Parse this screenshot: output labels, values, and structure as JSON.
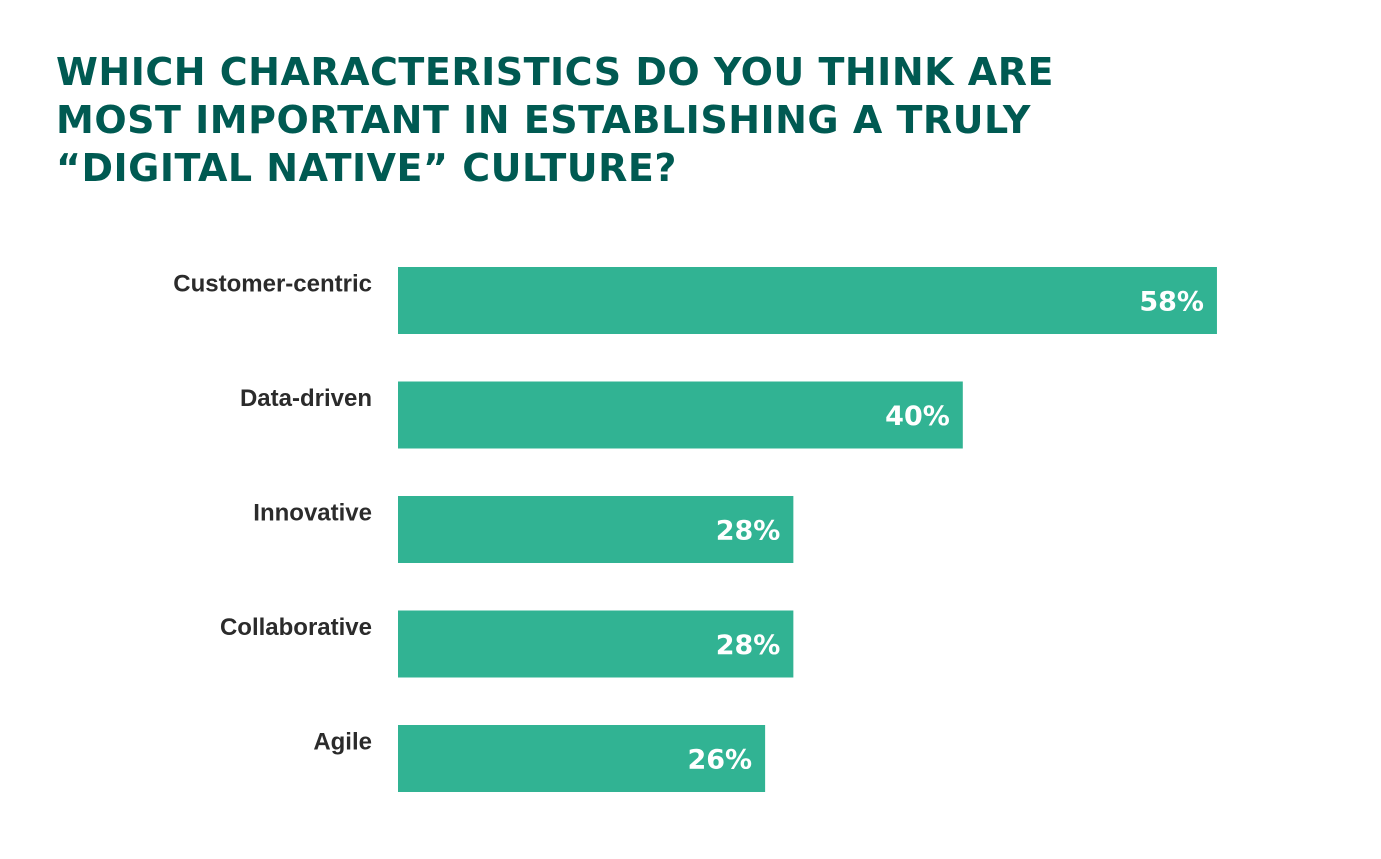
{
  "title_lines": [
    "WHICH CHARACTERISTICS DO YOU THINK ARE",
    "MOST IMPORTANT IN ESTABLISHING A TRULY",
    "“DIGITAL NATIVE” CULTURE?"
  ],
  "colors": {
    "title": "#005a52",
    "bar": "#31b393",
    "category_text": "#2b2b2b",
    "value_text": "#ffffff"
  },
  "chart_data": {
    "type": "bar",
    "orientation": "horizontal",
    "title": "WHICH CHARACTERISTICS DO YOU THINK ARE MOST IMPORTANT IN ESTABLISHING A TRULY “DIGITAL NATIVE” CULTURE?",
    "categories": [
      "Customer-centric",
      "Data-driven",
      "Innovative",
      "Collaborative",
      "Agile"
    ],
    "values": [
      58,
      40,
      28,
      28,
      26
    ],
    "value_labels": [
      "58%",
      "40%",
      "28%",
      "28%",
      "26%"
    ],
    "unit": "%",
    "xlabel": "",
    "ylabel": "",
    "grid": false,
    "legend": "none"
  }
}
